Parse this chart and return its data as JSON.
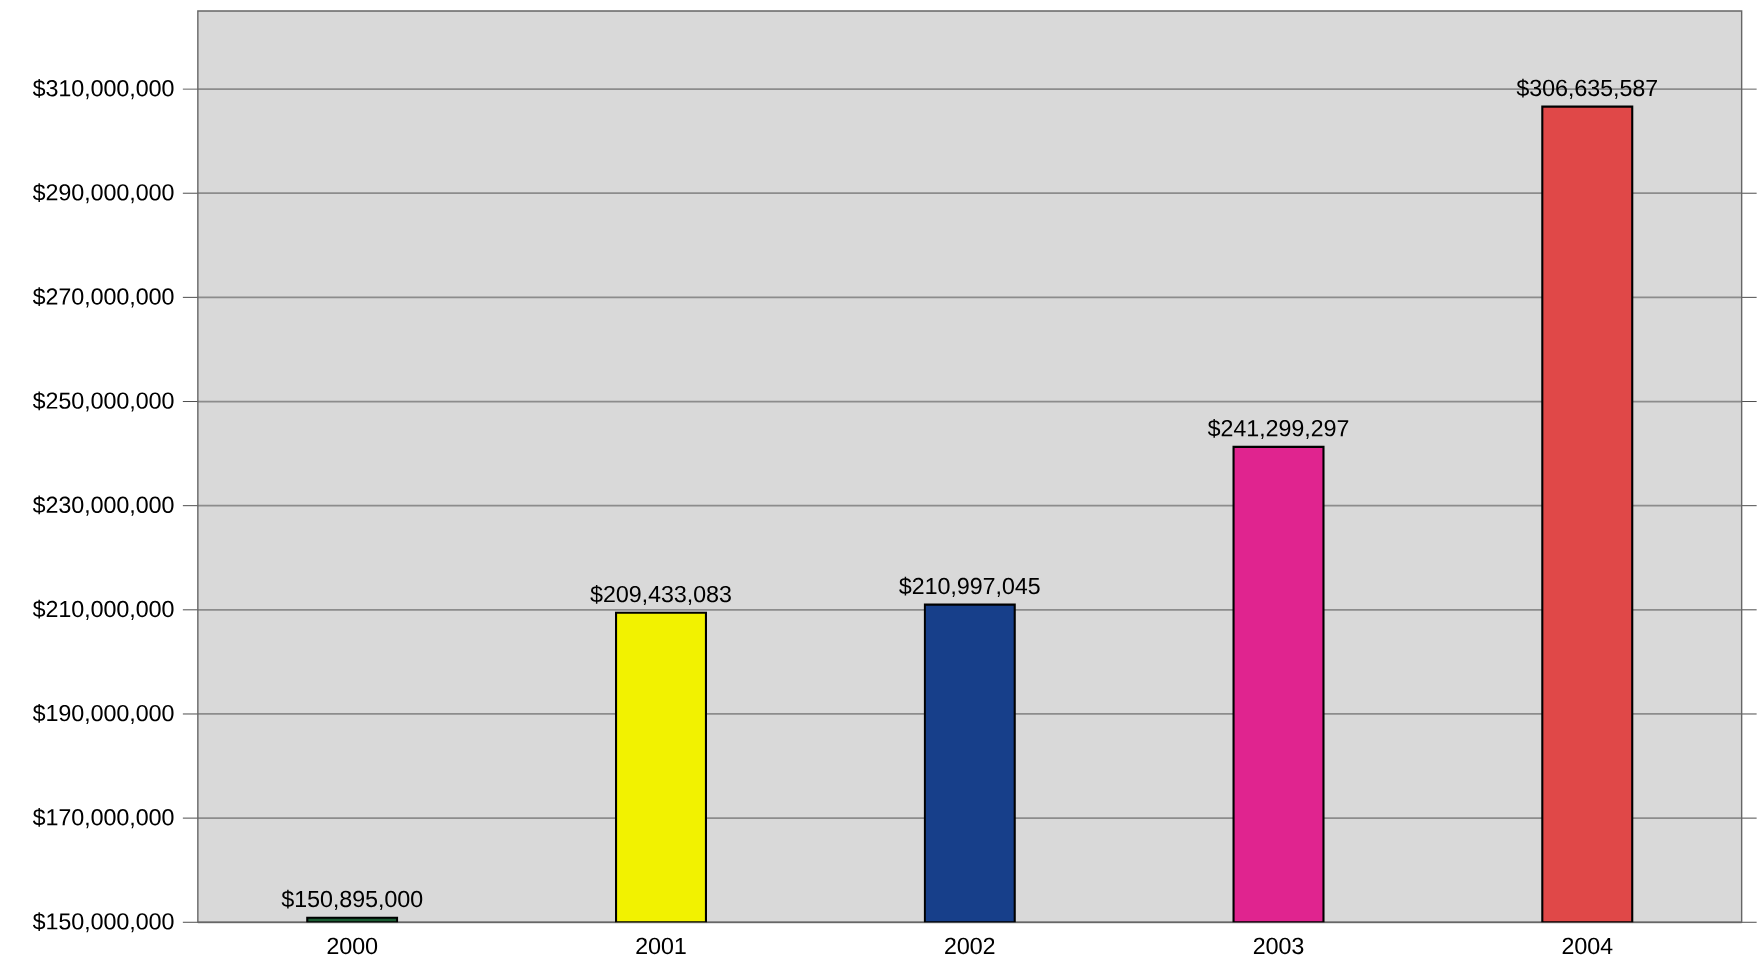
{
  "chart_data": {
    "type": "bar",
    "categories": [
      "2000",
      "2001",
      "2002",
      "2003",
      "2004"
    ],
    "values": [
      150895000,
      209433083,
      210997045,
      241299297,
      306635587
    ],
    "value_labels": [
      "$150,895,000",
      "$209,433,083",
      "$210,997,045",
      "$241,299,297",
      "$306,635,587"
    ],
    "colors": [
      "#1a5c32",
      "#f2f200",
      "#173f8a",
      "#e0248f",
      "#e04848"
    ],
    "ylim": [
      150000000,
      325000000
    ],
    "yticks": [
      {
        "value": 150000000,
        "label": "$150,000,000"
      },
      {
        "value": 170000000,
        "label": "$170,000,000"
      },
      {
        "value": 190000000,
        "label": "$190,000,000"
      },
      {
        "value": 210000000,
        "label": "$210,000,000"
      },
      {
        "value": 230000000,
        "label": "$230,000,000"
      },
      {
        "value": 250000000,
        "label": "$250,000,000"
      },
      {
        "value": 270000000,
        "label": "$270,000,000"
      },
      {
        "value": 290000000,
        "label": "$290,000,000"
      },
      {
        "value": 310000000,
        "label": "$310,000,000"
      }
    ],
    "grid": "y"
  }
}
